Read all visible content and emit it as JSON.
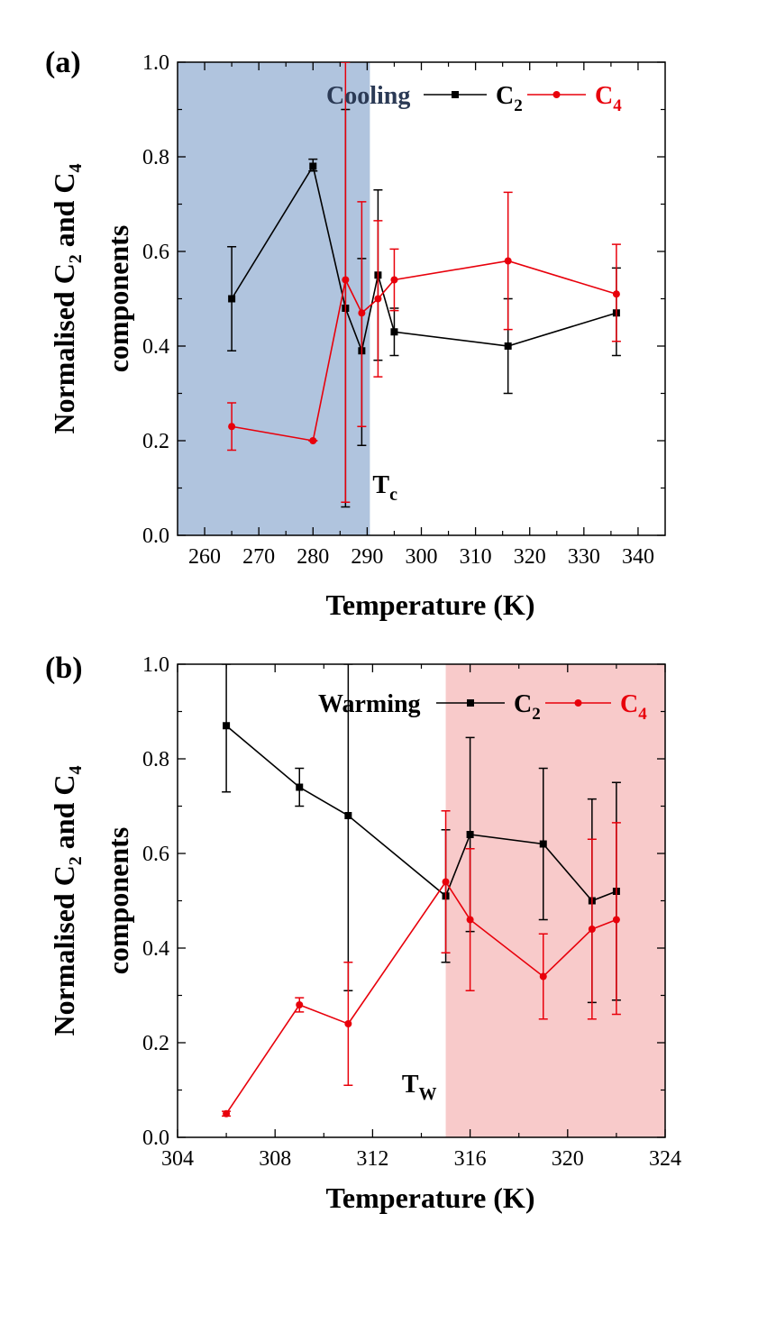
{
  "chart_data": [
    {
      "type": "line",
      "panel_label": "(a)",
      "xlabel": "Temperature (K)",
      "ylabel": {
        "line1": "Normalised C",
        "sub1": "2",
        "mid": " and C",
        "sub2": "4",
        "line2": "components"
      },
      "xlim": [
        255,
        345
      ],
      "ylim": [
        0.0,
        1.0
      ],
      "xticks": [
        260,
        270,
        280,
        290,
        300,
        310,
        320,
        330,
        340
      ],
      "yticks": [
        "0.0",
        "0.2",
        "0.4",
        "0.6",
        "0.8",
        "1.0"
      ],
      "shaded_region": {
        "x": [
          255,
          290.5
        ],
        "color": "#b0c4de"
      },
      "legend": {
        "title": "Cooling",
        "entries": [
          {
            "label": "C",
            "sub": "2"
          },
          {
            "label": "C",
            "sub": "4"
          }
        ]
      },
      "annotation": {
        "text": "T",
        "sub": "c",
        "x": 291,
        "y": 0.09
      },
      "series": [
        {
          "name": "C2",
          "color": "#000000",
          "marker": "square",
          "x": [
            265,
            280,
            286,
            289,
            292,
            295,
            316,
            336
          ],
          "y": [
            0.5,
            0.78,
            0.48,
            0.39,
            0.55,
            0.43,
            0.4,
            0.47
          ],
          "err_low": [
            0.39,
            0.77,
            0.06,
            0.19,
            0.37,
            0.38,
            0.3,
            0.38
          ],
          "err_high": [
            0.61,
            0.795,
            0.9,
            0.585,
            0.73,
            0.48,
            0.5,
            0.565
          ]
        },
        {
          "name": "C4",
          "color": "#e8000b",
          "marker": "circle",
          "x": [
            265,
            280,
            286,
            289,
            292,
            295,
            316,
            336
          ],
          "y": [
            0.23,
            0.2,
            0.54,
            0.47,
            0.5,
            0.54,
            0.58,
            0.51
          ],
          "err_low": [
            0.18,
            0.2,
            0.07,
            0.23,
            0.335,
            0.475,
            0.435,
            0.41
          ],
          "err_high": [
            0.28,
            0.2,
            1.0,
            0.705,
            0.665,
            0.605,
            0.725,
            0.615
          ]
        }
      ]
    },
    {
      "type": "line",
      "panel_label": "(b)",
      "xlabel": "Temperature (K)",
      "ylabel": {
        "line1": "Normalised C",
        "sub1": "2",
        "mid": " and C",
        "sub2": "4",
        "line2": "components"
      },
      "xlim": [
        304,
        324
      ],
      "ylim": [
        0.0,
        1.0
      ],
      "xticks": [
        304,
        308,
        312,
        316,
        320,
        324
      ],
      "yticks": [
        "0.0",
        "0.2",
        "0.4",
        "0.6",
        "0.8",
        "1.0"
      ],
      "shaded_region": {
        "x": [
          315,
          324
        ],
        "color": "#f8caca"
      },
      "legend": {
        "title": "Warming",
        "entries": [
          {
            "label": "C",
            "sub": "2"
          },
          {
            "label": "C",
            "sub": "4"
          }
        ]
      },
      "annotation": {
        "text": "T",
        "sub": "W",
        "x": 313.2,
        "y": 0.095
      },
      "series": [
        {
          "name": "C2",
          "color": "#000000",
          "marker": "square",
          "x": [
            306,
            309,
            311,
            315,
            316,
            319,
            321,
            322
          ],
          "y": [
            0.87,
            0.74,
            0.68,
            0.51,
            0.64,
            0.62,
            0.5,
            0.52
          ],
          "err_low": [
            0.73,
            0.7,
            0.31,
            0.37,
            0.435,
            0.46,
            0.285,
            0.29
          ],
          "err_high": [
            1.0,
            0.78,
            1.0,
            0.65,
            0.845,
            0.78,
            0.715,
            0.75
          ]
        },
        {
          "name": "C4",
          "color": "#e8000b",
          "marker": "circle",
          "x": [
            306,
            309,
            311,
            315,
            316,
            319,
            321,
            322
          ],
          "y": [
            0.05,
            0.28,
            0.24,
            0.54,
            0.46,
            0.34,
            0.44,
            0.46
          ],
          "err_low": [
            0.045,
            0.265,
            0.11,
            0.39,
            0.31,
            0.25,
            0.25,
            0.26
          ],
          "err_high": [
            0.055,
            0.295,
            0.37,
            0.69,
            0.61,
            0.43,
            0.63,
            0.665
          ]
        }
      ]
    }
  ]
}
